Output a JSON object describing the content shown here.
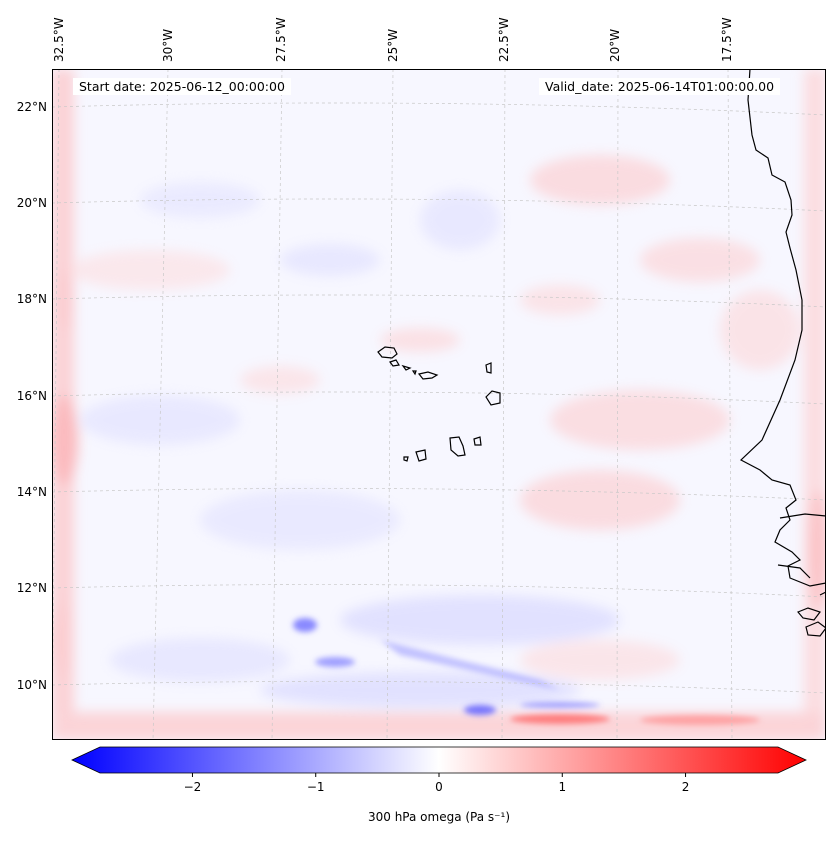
{
  "map": {
    "start_date_label": "Start date: 2025-06-12_00:00:00",
    "valid_date_label": "Valid_date: 2025-06-14T01:00:00.00",
    "longitude_labels": [
      "32.5°W",
      "30°W",
      "27.5°W",
      "25°W",
      "22.5°W",
      "20°W",
      "17.5°W"
    ],
    "latitude_labels": [
      "22°N",
      "20°N",
      "18°N",
      "16°N",
      "14°N",
      "12°N",
      "10°N"
    ],
    "extent": {
      "lon_min": -33.0,
      "lon_max": -15.6,
      "lat_min": 8.9,
      "lat_max": 22.8
    },
    "variable": "300 hPa omega"
  },
  "colorbar": {
    "label": "300 hPa omega (Pa s⁻¹)",
    "ticks": [
      "−2",
      "−1",
      "0",
      "1",
      "2"
    ],
    "tick_values": [
      -2,
      -1,
      0,
      1,
      2
    ],
    "min": -2.75,
    "max": 2.75,
    "colors": {
      "negative": "#0000ff",
      "neutral": "#ffffff",
      "positive": "#ff0000"
    }
  },
  "colors": {
    "coastline": "#000000",
    "grid": "#c8c8c8"
  }
}
